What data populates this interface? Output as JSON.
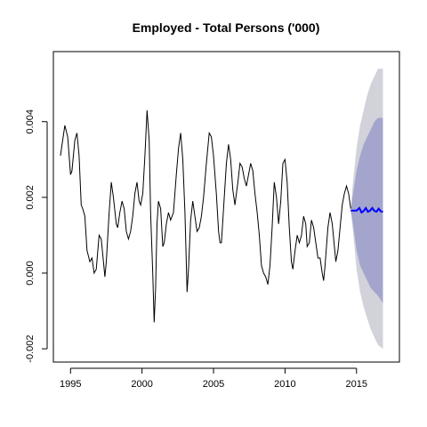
{
  "chart_data": {
    "type": "line",
    "title": "Employed - Total Persons ('000)",
    "xlabel": "",
    "ylabel": "",
    "xlim": [
      1993.8,
      2018.0
    ],
    "ylim": [
      -0.00235,
      0.00585
    ],
    "x_ticks": [
      {
        "value": 1995,
        "label": "1995"
      },
      {
        "value": 2000,
        "label": "2000"
      },
      {
        "value": 2005,
        "label": "2005"
      },
      {
        "value": 2010,
        "label": "2010"
      },
      {
        "value": 2015,
        "label": "2015"
      }
    ],
    "y_ticks": [
      {
        "value": -0.002,
        "label": "-0.002"
      },
      {
        "value": 0.0,
        "label": "0.000"
      },
      {
        "value": 0.002,
        "label": "0.002"
      },
      {
        "value": 0.004,
        "label": "0.004"
      }
    ],
    "grid": false,
    "colors": {
      "history": "#000000",
      "forecast": "#0000ff",
      "interval_80": "#a3a5cc",
      "interval_95": "#d2d2da"
    },
    "series": [
      {
        "name": "",
        "role": "history",
        "points": [
          [
            1994.3,
            0.0031
          ],
          [
            1994.45,
            0.0035
          ],
          [
            1994.6,
            0.0039
          ],
          [
            1994.8,
            0.0036
          ],
          [
            1995.0,
            0.0026
          ],
          [
            1995.1,
            0.0027
          ],
          [
            1995.3,
            0.0035
          ],
          [
            1995.45,
            0.0037
          ],
          [
            1995.6,
            0.0031
          ],
          [
            1995.75,
            0.0018
          ],
          [
            1995.85,
            0.0017
          ],
          [
            1996.0,
            0.0015
          ],
          [
            1996.15,
            0.0006
          ],
          [
            1996.35,
            0.0003
          ],
          [
            1996.5,
            0.0004
          ],
          [
            1996.65,
            0.0
          ],
          [
            1996.8,
            0.0001
          ],
          [
            1997.0,
            0.001
          ],
          [
            1997.15,
            0.0009
          ],
          [
            1997.3,
            0.0003
          ],
          [
            1997.4,
            -0.0001
          ],
          [
            1997.5,
            0.0003
          ],
          [
            1997.7,
            0.0016
          ],
          [
            1997.85,
            0.0024
          ],
          [
            1998.0,
            0.002
          ],
          [
            1998.2,
            0.0013
          ],
          [
            1998.3,
            0.0012
          ],
          [
            1998.45,
            0.0016
          ],
          [
            1998.6,
            0.0019
          ],
          [
            1998.75,
            0.0017
          ],
          [
            1998.9,
            0.0011
          ],
          [
            1999.05,
            0.0009
          ],
          [
            1999.2,
            0.0011
          ],
          [
            1999.35,
            0.0015
          ],
          [
            1999.5,
            0.0021
          ],
          [
            1999.65,
            0.0024
          ],
          [
            1999.8,
            0.0019
          ],
          [
            1999.9,
            0.0018
          ],
          [
            2000.05,
            0.0021
          ],
          [
            2000.2,
            0.0031
          ],
          [
            2000.35,
            0.0043
          ],
          [
            2000.5,
            0.0035
          ],
          [
            2000.6,
            0.0016
          ],
          [
            2000.75,
            0.0
          ],
          [
            2000.85,
            -0.0013
          ],
          [
            2000.95,
            -0.0004
          ],
          [
            2001.05,
            0.0013
          ],
          [
            2001.15,
            0.0019
          ],
          [
            2001.3,
            0.0017
          ],
          [
            2001.45,
            0.0007
          ],
          [
            2001.55,
            0.0008
          ],
          [
            2001.7,
            0.0013
          ],
          [
            2001.85,
            0.0016
          ],
          [
            2002.0,
            0.0014
          ],
          [
            2002.2,
            0.0016
          ],
          [
            2002.4,
            0.0026
          ],
          [
            2002.55,
            0.0033
          ],
          [
            2002.7,
            0.0037
          ],
          [
            2002.85,
            0.003
          ],
          [
            2003.0,
            0.0016
          ],
          [
            2003.15,
            -0.0005
          ],
          [
            2003.25,
            0.0001
          ],
          [
            2003.4,
            0.0014
          ],
          [
            2003.55,
            0.0019
          ],
          [
            2003.7,
            0.0015
          ],
          [
            2003.85,
            0.0011
          ],
          [
            2004.0,
            0.0012
          ],
          [
            2004.15,
            0.0015
          ],
          [
            2004.3,
            0.002
          ],
          [
            2004.5,
            0.0029
          ],
          [
            2004.7,
            0.0037
          ],
          [
            2004.85,
            0.0036
          ],
          [
            2005.0,
            0.0031
          ],
          [
            2005.2,
            0.0021
          ],
          [
            2005.35,
            0.0011
          ],
          [
            2005.45,
            0.0008
          ],
          [
            2005.55,
            0.0008
          ],
          [
            2005.7,
            0.0017
          ],
          [
            2005.9,
            0.0029
          ],
          [
            2006.05,
            0.0034
          ],
          [
            2006.2,
            0.003
          ],
          [
            2006.35,
            0.0022
          ],
          [
            2006.5,
            0.0018
          ],
          [
            2006.7,
            0.0024
          ],
          [
            2006.85,
            0.0029
          ],
          [
            2007.0,
            0.0028
          ],
          [
            2007.15,
            0.0025
          ],
          [
            2007.3,
            0.0023
          ],
          [
            2007.45,
            0.0026
          ],
          [
            2007.6,
            0.0029
          ],
          [
            2007.75,
            0.0027
          ],
          [
            2007.9,
            0.0021
          ],
          [
            2008.05,
            0.0016
          ],
          [
            2008.2,
            0.001
          ],
          [
            2008.35,
            0.0002
          ],
          [
            2008.5,
            0.0
          ],
          [
            2008.65,
            -0.0001
          ],
          [
            2008.8,
            -0.0003
          ],
          [
            2008.95,
            0.0002
          ],
          [
            2009.1,
            0.0012
          ],
          [
            2009.25,
            0.0024
          ],
          [
            2009.4,
            0.002
          ],
          [
            2009.55,
            0.0013
          ],
          [
            2009.7,
            0.0019
          ],
          [
            2009.85,
            0.0029
          ],
          [
            2010.0,
            0.003
          ],
          [
            2010.15,
            0.0024
          ],
          [
            2010.3,
            0.0012
          ],
          [
            2010.45,
            0.0003
          ],
          [
            2010.55,
            0.0001
          ],
          [
            2010.7,
            0.0006
          ],
          [
            2010.85,
            0.001
          ],
          [
            2011.0,
            0.0008
          ],
          [
            2011.15,
            0.001
          ],
          [
            2011.3,
            0.0015
          ],
          [
            2011.45,
            0.0013
          ],
          [
            2011.55,
            0.0007
          ],
          [
            2011.7,
            0.0008
          ],
          [
            2011.85,
            0.0014
          ],
          [
            2012.0,
            0.0012
          ],
          [
            2012.15,
            0.0008
          ],
          [
            2012.3,
            0.0004
          ],
          [
            2012.45,
            0.0004
          ],
          [
            2012.6,
            0.0
          ],
          [
            2012.7,
            -0.0002
          ],
          [
            2012.8,
            0.0002
          ],
          [
            2013.0,
            0.0012
          ],
          [
            2013.15,
            0.0016
          ],
          [
            2013.3,
            0.0013
          ],
          [
            2013.45,
            0.0007
          ],
          [
            2013.55,
            0.0003
          ],
          [
            2013.7,
            0.0006
          ],
          [
            2013.85,
            0.0012
          ],
          [
            2014.0,
            0.0018
          ],
          [
            2014.15,
            0.0021
          ],
          [
            2014.3,
            0.0023
          ],
          [
            2014.45,
            0.0021
          ],
          [
            2014.6,
            0.0017
          ]
        ]
      },
      {
        "name": "",
        "role": "forecast",
        "points": [
          [
            2014.6,
            0.00165
          ],
          [
            2014.8,
            0.00165
          ],
          [
            2015.0,
            0.00165
          ],
          [
            2015.2,
            0.00172
          ],
          [
            2015.35,
            0.0016
          ],
          [
            2015.5,
            0.00164
          ],
          [
            2015.65,
            0.00172
          ],
          [
            2015.8,
            0.00162
          ],
          [
            2015.95,
            0.00165
          ],
          [
            2016.1,
            0.00172
          ],
          [
            2016.25,
            0.00164
          ],
          [
            2016.4,
            0.00162
          ],
          [
            2016.55,
            0.0017
          ],
          [
            2016.7,
            0.00163
          ],
          [
            2016.85,
            0.00162
          ]
        ],
        "lower_80": [
          [
            2014.6,
            0.00165
          ],
          [
            2014.75,
            0.0013
          ],
          [
            2015.0,
            0.0006
          ],
          [
            2015.25,
            0.0002
          ],
          [
            2015.5,
            0.0
          ],
          [
            2015.75,
            -0.0002
          ],
          [
            2016.0,
            -0.0004
          ],
          [
            2016.25,
            -0.0005
          ],
          [
            2016.5,
            -0.0006
          ],
          [
            2016.85,
            -0.0008
          ]
        ],
        "upper_80": [
          [
            2014.6,
            0.00165
          ],
          [
            2014.75,
            0.0021
          ],
          [
            2015.0,
            0.0027
          ],
          [
            2015.25,
            0.0031
          ],
          [
            2015.5,
            0.0034
          ],
          [
            2015.75,
            0.0036
          ],
          [
            2016.0,
            0.0038
          ],
          [
            2016.25,
            0.004
          ],
          [
            2016.5,
            0.0041
          ],
          [
            2016.85,
            0.0041
          ]
        ],
        "lower_95": [
          [
            2014.6,
            0.00165
          ],
          [
            2014.75,
            0.0011
          ],
          [
            2015.0,
            0.0001
          ],
          [
            2015.25,
            -0.0005
          ],
          [
            2015.5,
            -0.0009
          ],
          [
            2015.75,
            -0.0012
          ],
          [
            2016.0,
            -0.0015
          ],
          [
            2016.25,
            -0.0017
          ],
          [
            2016.5,
            -0.0019
          ],
          [
            2016.85,
            -0.002
          ]
        ],
        "upper_95": [
          [
            2014.6,
            0.00165
          ],
          [
            2014.75,
            0.0024
          ],
          [
            2015.0,
            0.0033
          ],
          [
            2015.25,
            0.0039
          ],
          [
            2015.5,
            0.0043
          ],
          [
            2015.75,
            0.0047
          ],
          [
            2016.0,
            0.005
          ],
          [
            2016.25,
            0.0052
          ],
          [
            2016.5,
            0.0054
          ],
          [
            2016.85,
            0.0054
          ]
        ]
      }
    ]
  }
}
